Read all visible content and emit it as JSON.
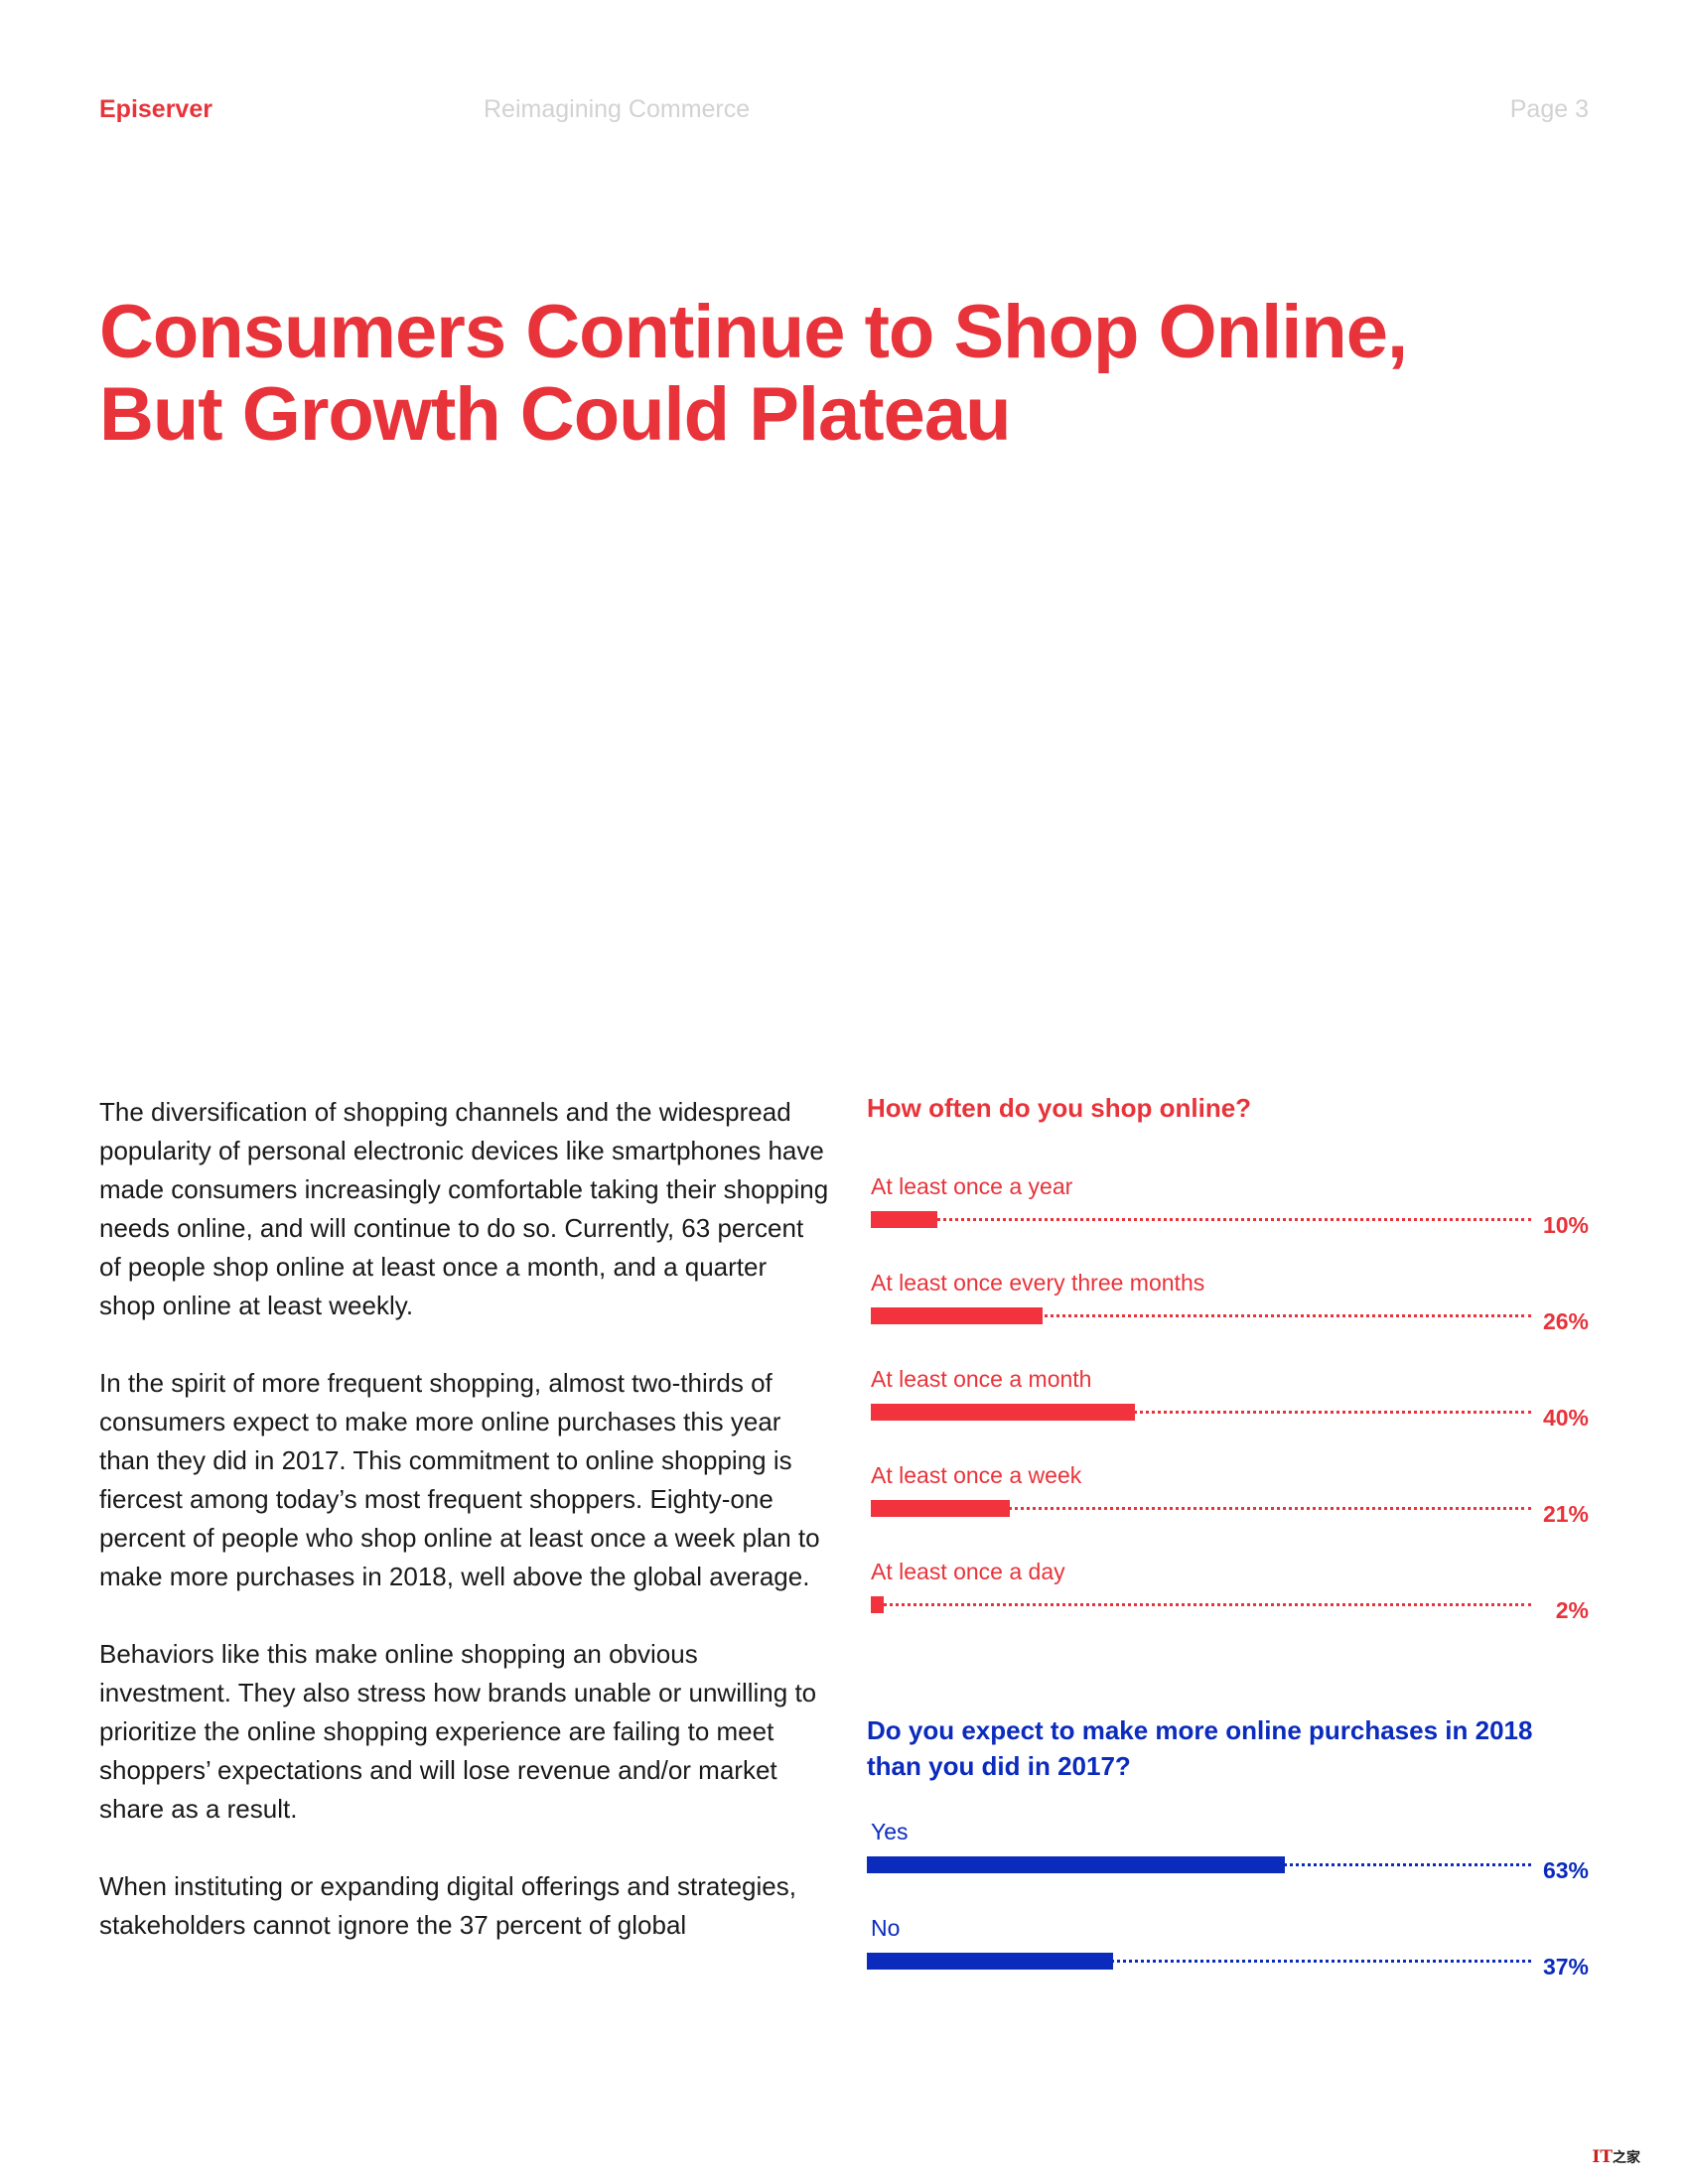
{
  "header": {
    "brand": "Episerver",
    "document": "Reimagining Commerce",
    "page": "Page 3"
  },
  "title": {
    "line1": "Consumers Continue to Shop Online,",
    "line2": "But Growth Could Plateau"
  },
  "body": {
    "paragraphs": [
      "The diversification of shopping channels and the widespread popularity of personal electronic devices like smartphones have made consumers increasingly comfortable taking their shopping needs online, and will continue to do so. Currently, 63 percent of people shop online at least once a month, and a quarter shop online at least weekly.",
      "In the spirit of more frequent shopping, almost two-thirds of consumers expect to make more online purchases this year than they did in 2017. This commitment to online shopping is fiercest among today’s most frequent shoppers. Eighty-one percent of people who shop online at least once a week plan to make more purchases in 2018, well above the global average.",
      "Behaviors like this make online shopping an obvious investment. They also stress how brands unable or unwilling to prioritize the online shopping experience are failing to meet shoppers’ expectations and will lose revenue and/or market share as a result.",
      "When instituting or expanding digital offerings and strategies, stakeholders cannot ignore the 37 percent of global"
    ]
  },
  "chart_data": [
    {
      "type": "bar",
      "orientation": "horizontal",
      "title": "How often do you shop online?",
      "categories": [
        "At least once a year",
        "At least once every three months",
        "At least once a month",
        "At least once a week",
        "At least once a day"
      ],
      "values": [
        10,
        26,
        40,
        21,
        2
      ],
      "value_labels": [
        "10%",
        "26%",
        "40%",
        "21%",
        "2%"
      ],
      "xlim": [
        0,
        100
      ],
      "color": "#f2333d"
    },
    {
      "type": "bar",
      "orientation": "horizontal",
      "title": "Do you expect to make more online purchases in 2018 than you did in 2017?",
      "categories": [
        "Yes",
        "No"
      ],
      "values": [
        63,
        37
      ],
      "value_labels": [
        "63%",
        "37%"
      ],
      "xlim": [
        0,
        100
      ],
      "color": "#0b2bbd"
    }
  ],
  "watermark": {
    "logo_text": "IT之家"
  }
}
